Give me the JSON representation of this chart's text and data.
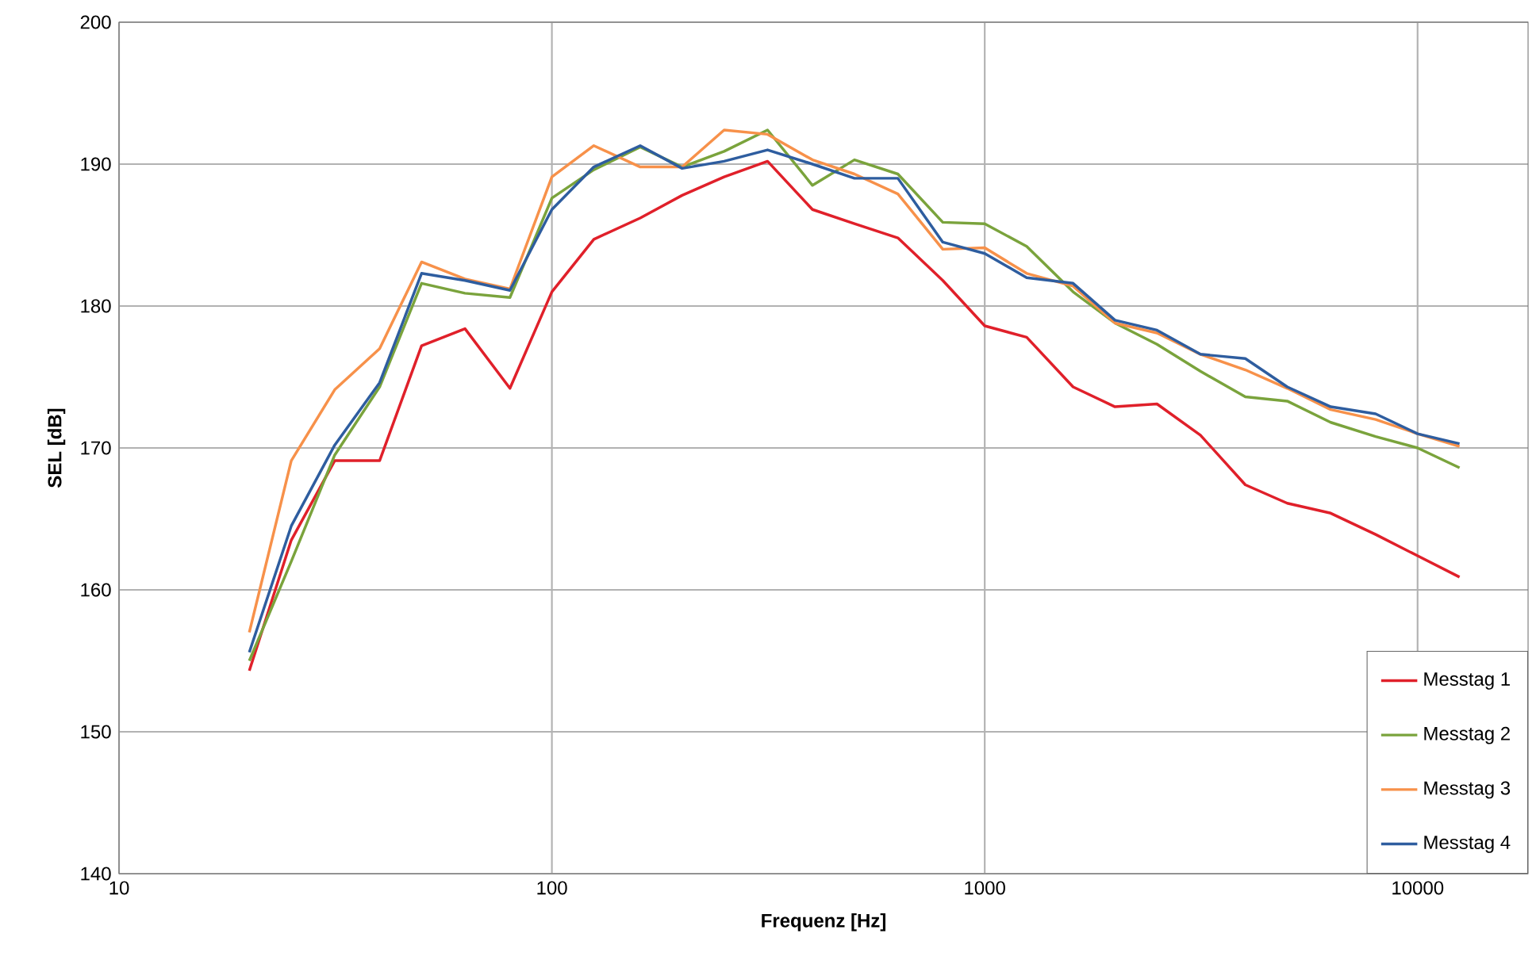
{
  "chart_data": {
    "type": "line",
    "xlabel": "Frequenz [Hz]",
    "ylabel": "SEL [dB]",
    "log": "x",
    "x": [
      20,
      25,
      31.5,
      40,
      50,
      63,
      80,
      100,
      125,
      160,
      200,
      250,
      315,
      400,
      500,
      630,
      800,
      1000,
      1250,
      1600,
      2000,
      2500,
      3150,
      4000,
      5000,
      6300,
      8000,
      10000,
      12500
    ],
    "xlim": [
      10,
      18000
    ],
    "xticks": [
      10,
      100,
      1000,
      10000
    ],
    "ylim": [
      140,
      200
    ],
    "yticks": [
      140,
      150,
      160,
      170,
      180,
      190,
      200
    ],
    "grid": true,
    "legend": "bottom right",
    "marker": "none",
    "line_style": "solid",
    "series": [
      {
        "name": "Messtag 1",
        "color": "#e0202a",
        "values": [
          154.3,
          163.5,
          169.1,
          169.1,
          177.2,
          178.4,
          174.2,
          181,
          184.7,
          186.2,
          187.8,
          189.1,
          190.2,
          186.8,
          185.8,
          184.8,
          181.8,
          178.6,
          177.8,
          174.3,
          172.9,
          173.1,
          170.9,
          167.4,
          166.1,
          165.4,
          163.9,
          162.4,
          160.9
        ]
      },
      {
        "name": "Messtag 2",
        "color": "#7aa33c",
        "values": [
          155,
          162,
          169.5,
          174.3,
          181.6,
          180.9,
          180.6,
          187.6,
          189.6,
          191.2,
          189.8,
          190.9,
          192.4,
          188.5,
          190.3,
          189.3,
          185.9,
          185.8,
          184.2,
          181,
          178.8,
          177.3,
          175.4,
          173.6,
          173.3,
          171.8,
          170.8,
          170,
          168.6
        ]
      },
      {
        "name": "Messtag 3",
        "color": "#f7914a",
        "values": [
          157,
          169.1,
          174.1,
          177,
          183.1,
          181.9,
          181.2,
          189.1,
          191.3,
          189.8,
          189.8,
          192.4,
          192.1,
          190.3,
          189.3,
          187.9,
          184,
          184.1,
          182.3,
          181.4,
          178.8,
          178.1,
          176.6,
          175.5,
          174.2,
          172.7,
          172,
          171,
          170.1
        ]
      },
      {
        "name": "Messtag 4",
        "color": "#2e5d9f",
        "values": [
          155.6,
          164.5,
          170.2,
          174.6,
          182.3,
          181.8,
          181.1,
          186.8,
          189.8,
          191.3,
          189.7,
          190.2,
          191,
          190,
          189,
          189,
          184.5,
          183.7,
          182,
          181.6,
          179,
          178.3,
          176.6,
          176.3,
          174.3,
          172.9,
          172.4,
          171,
          170.3
        ]
      }
    ]
  }
}
